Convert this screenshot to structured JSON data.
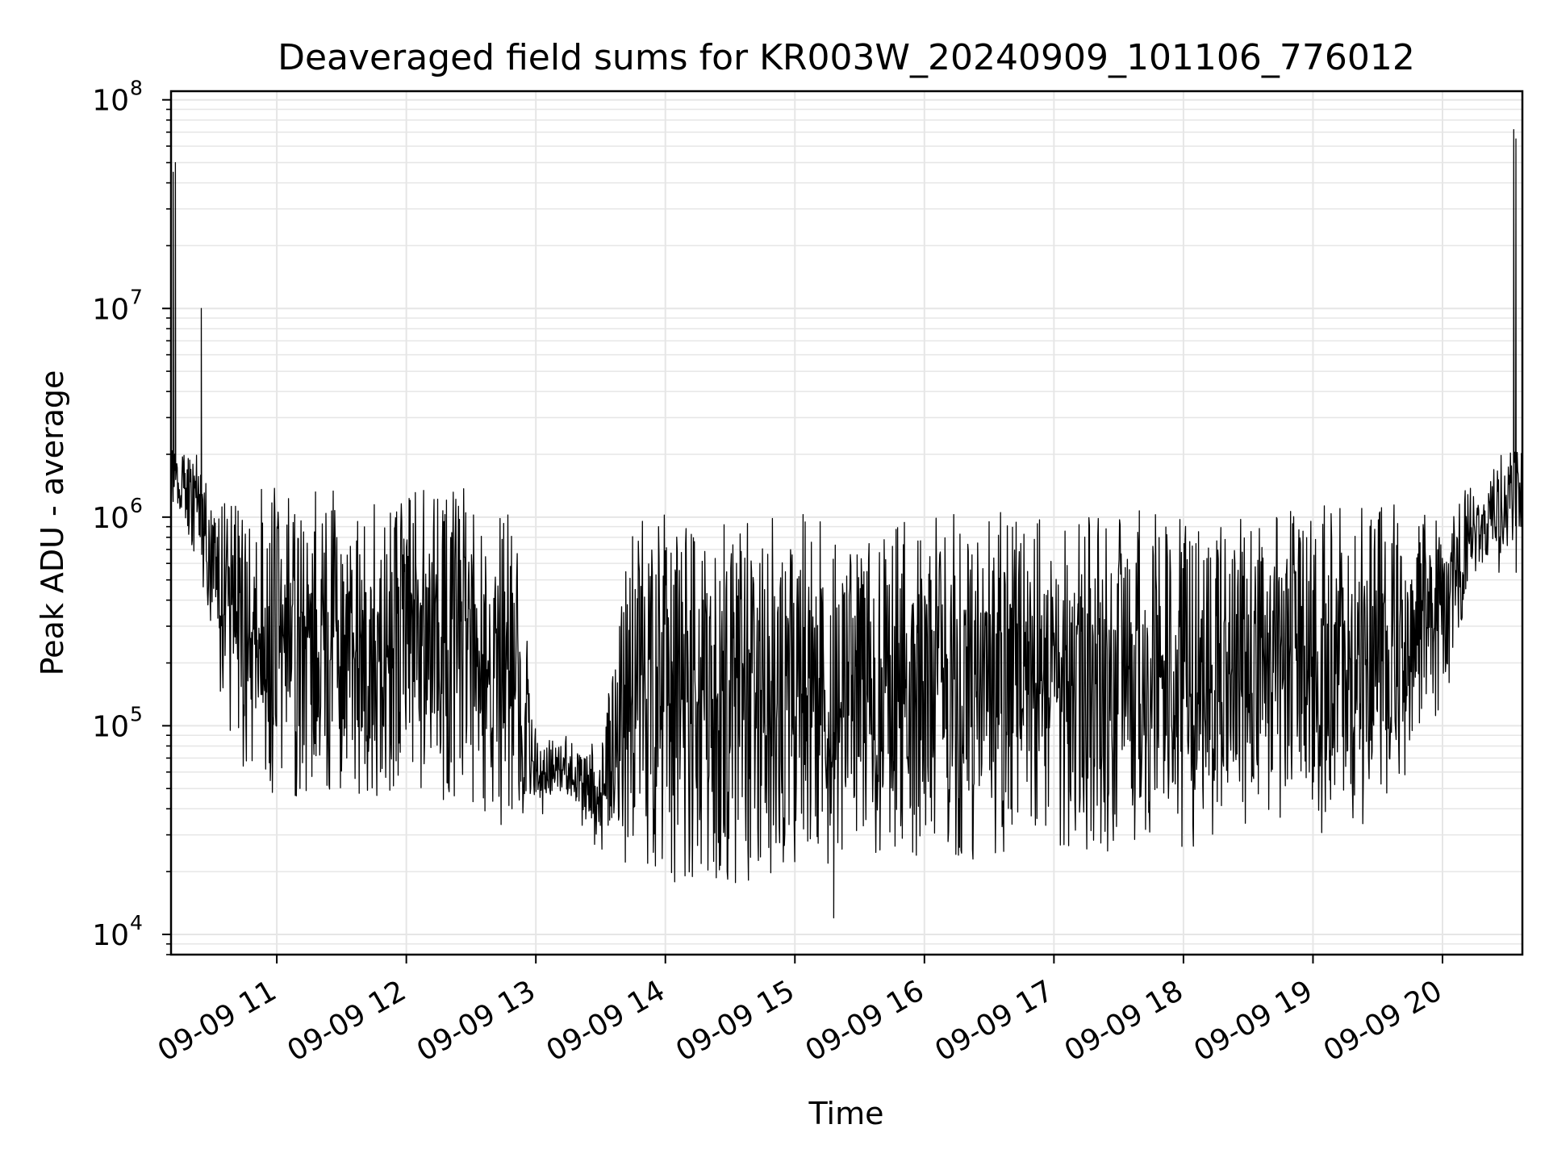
{
  "chart_data": {
    "type": "line",
    "title": "Deaveraged field sums for KR003W_20240909_101106_776012",
    "xlabel": "Time",
    "ylabel": "Peak ADU - average",
    "x_axis": {
      "type": "time",
      "range": [
        "2024-09-09T10:11",
        "2024-09-09T20:37"
      ],
      "tick_labels": [
        "09-09 11",
        "09-09 12",
        "09-09 13",
        "09-09 14",
        "09-09 15",
        "09-09 16",
        "09-09 17",
        "09-09 18",
        "09-09 19",
        "09-09 20"
      ],
      "tick_values": [
        "2024-09-09T11:00",
        "2024-09-09T12:00",
        "2024-09-09T13:00",
        "2024-09-09T14:00",
        "2024-09-09T15:00",
        "2024-09-09T16:00",
        "2024-09-09T17:00",
        "2024-09-09T18:00",
        "2024-09-09T19:00",
        "2024-09-09T20:00"
      ]
    },
    "y_axis": {
      "scale": "log",
      "range": [
        8000,
        110000000
      ],
      "tick_values": [
        10000,
        100000,
        1000000,
        10000000,
        100000000
      ],
      "tick_labels": [
        {
          "base": "10",
          "exp": "4"
        },
        {
          "base": "10",
          "exp": "5"
        },
        {
          "base": "10",
          "exp": "6"
        },
        {
          "base": "10",
          "exp": "7"
        },
        {
          "base": "10",
          "exp": "8"
        }
      ]
    },
    "grid": true,
    "line_color": "#000000",
    "grid_color": "#e6e6e6",
    "envelope": {
      "x": [
        "10:11",
        "10:14",
        "10:20",
        "10:30",
        "10:45",
        "11:00",
        "11:30",
        "12:00",
        "12:30",
        "12:50",
        "13:00",
        "13:15",
        "13:30",
        "13:45",
        "14:00",
        "14:30",
        "15:00",
        "15:30",
        "16:00",
        "16:15",
        "16:30",
        "16:45",
        "17:00",
        "17:30",
        "18:00",
        "18:15",
        "18:30",
        "19:00",
        "19:30",
        "20:00",
        "20:15",
        "20:30",
        "20:37"
      ],
      "upper": [
        3000000,
        2000000,
        2000000,
        1300000,
        1200000,
        1200000,
        1200000,
        1200000,
        1200000,
        900000,
        90000,
        85000,
        80000,
        900000,
        900000,
        900000,
        900000,
        900000,
        950000,
        900000,
        950000,
        950000,
        950000,
        1000000,
        1000000,
        900000,
        950000,
        1000000,
        1000000,
        1000000,
        1500000,
        2200000,
        2500000
      ],
      "lower": [
        1200000,
        1000000,
        800000,
        250000,
        60000,
        55000,
        55000,
        55000,
        50000,
        35000,
        45000,
        45000,
        30000,
        25000,
        20000,
        20000,
        22000,
        25000,
        28000,
        25000,
        28000,
        30000,
        30000,
        30000,
        30000,
        35000,
        35000,
        35000,
        40000,
        150000,
        500000,
        700000,
        600000
      ]
    },
    "spikes": [
      {
        "x": "10:12",
        "y": 45000000
      },
      {
        "x": "10:13",
        "y": 50000000
      },
      {
        "x": "10:25",
        "y": 10000000
      },
      {
        "x": "20:33",
        "y": 72000000
      },
      {
        "x": "20:34",
        "y": 65000000
      },
      {
        "x": "15:18",
        "y": 12000
      }
    ]
  }
}
